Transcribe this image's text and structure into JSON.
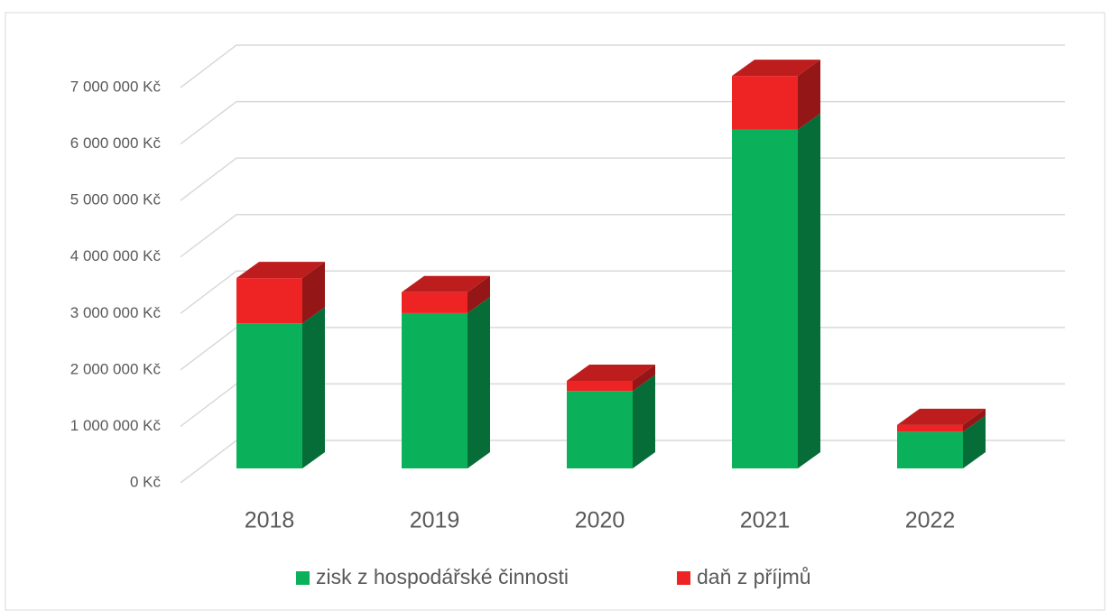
{
  "chart_data": {
    "type": "bar3d_stacked",
    "categories": [
      "2018",
      "2019",
      "2020",
      "2021",
      "2022"
    ],
    "series": [
      {
        "name": "zisk z hospodářské činnosti",
        "color": "#0bb05a",
        "values": [
          2570000,
          2750000,
          1370000,
          6000000,
          650000
        ]
      },
      {
        "name": "daň z příjmů",
        "color": "#ee2424",
        "values": [
          800000,
          370000,
          180000,
          950000,
          120000
        ]
      }
    ],
    "ylim": [
      0,
      7000000
    ],
    "yticks": [
      {
        "value": 0,
        "label": "0 Kč"
      },
      {
        "value": 1000000,
        "label": "1 000 000 Kč"
      },
      {
        "value": 2000000,
        "label": "2 000 000 Kč"
      },
      {
        "value": 3000000,
        "label": "3 000 000 Kč"
      },
      {
        "value": 4000000,
        "label": "4 000 000 Kč"
      },
      {
        "value": 5000000,
        "label": "5 000 000 Kč"
      },
      {
        "value": 6000000,
        "label": "6 000 000 Kč"
      },
      {
        "value": 7000000,
        "label": "7 000 000 Kč"
      }
    ],
    "grid": true,
    "legend": "bottom"
  }
}
